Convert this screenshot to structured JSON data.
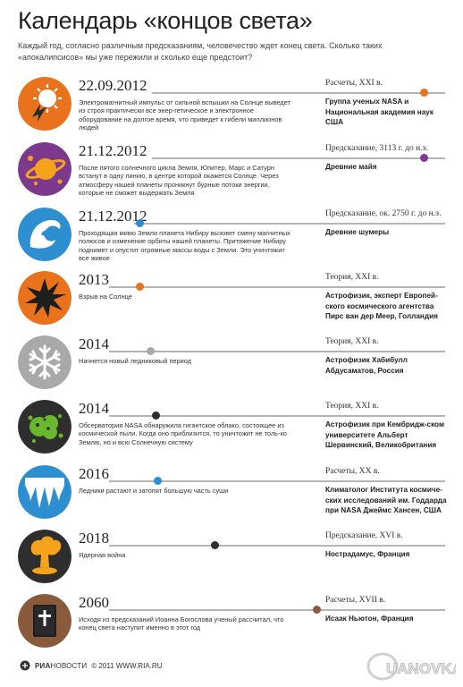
{
  "header": {
    "title": "Календарь «концов света»",
    "subtitle": "Каждый год, согласно различным предсказаниям, человечество ждет конец света. Сколько таких «апокалипсисов» мы уже пережили и сколько еще предстоит?"
  },
  "events": [
    {
      "date": "22.09.2012",
      "description": "Электромагнитный импульс от сильной вспышки на Солнце выведет из строя практически все энер-гетическое и электронное оборудование на долгое время, что приведет к гибели миллионов людей",
      "type": "Расчеты, XXI в.",
      "source": "Группа ученых NASA и Национальная академия наук США",
      "icon": "solar-flare-icon",
      "color": "#e8731c"
    },
    {
      "date": "21.12.2012",
      "description": "После пятого солнечного цикла Земля, Юпитер, Марс и Сатурн встанут в одну линию, в центре которой окажется Солнце. Через атмосферу нашей планеты проникнут бурные потоки энергии, которые не сможет выдержать Земля",
      "type": "Предсказание, 3113 г. до н.э.",
      "source": "Древние майя",
      "icon": "planet-alignment-icon",
      "color": "#7d3a8c"
    },
    {
      "date": "21.12.2012",
      "description": "Проходящая мимо Земли планета Нибиру вызовет смену магнитных полюсов и изменение орбиты нашей планеты. Притяжение Нибиру поднимет и опустит огромные массы воды с Земли. Это уничтожит все живое",
      "type": "Предсказание, ок. 2750 г. до н.э.",
      "source": "Древние шумеры",
      "icon": "tidal-wave-icon",
      "color": "#2e8fd0"
    },
    {
      "date": "2013",
      "description": "Взрыв на Солнце",
      "type": "Теория, XXI в.",
      "source": "Астрофизик, эксперт Европей-ского космического агентства Пирс ван дер Меер, Голландия",
      "icon": "sun-explosion-icon",
      "color": "#e8731c"
    },
    {
      "date": "2014",
      "description": "Начнется новый ледниковый период",
      "type": "Теория, XXI в.",
      "source": "Астрофизик Хабибулл Абдусаматов, Россия",
      "icon": "snowflake-icon",
      "color": "#a9a9a9"
    },
    {
      "date": "2014",
      "description": "Обсерватория NASA обнаружила гигантское облако, состоящее из космической пыли. Когда оно приблизится, то уничтожит не толь-ко Землю, но и всю Солнечную систему",
      "type": "Теория, XXI в.",
      "source": "Астрофизик при Кембридж-ском университете Альберт Шервинский, Великобритания",
      "icon": "space-dust-cloud-icon",
      "color": "#2e2e2e"
    },
    {
      "date": "2016",
      "description": "Ледники растают и затопят большую часть суши",
      "type": "Расчеты, XX в.",
      "source": "Климатолог Института космиче-ских исследований им. Годдарда при NASA Джеймс Хансен, США",
      "icon": "melting-glacier-icon",
      "color": "#2e8fd0"
    },
    {
      "date": "2018",
      "description": "Ядерная война",
      "type": "Предсказание, XVI в.",
      "source": "Нострадамус, Франция",
      "icon": "nuclear-explosion-icon",
      "color": "#2e2e2e"
    },
    {
      "date": "2060",
      "description": "Исходя из предсказаний Иоанна Богослова ученый рассчитал, что конец света наступит именно в этот год",
      "type": "Расчеты, XVII в.",
      "source": "Исаак Ньютон, Франция",
      "icon": "bible-icon",
      "color": "#8a5a3c"
    }
  ],
  "footer": {
    "logo_ria": "РИА",
    "logo_novosti": "НОВОСТИ",
    "credit": "© 2011 WWW.RIA.RU"
  },
  "watermark": "UANOVKA"
}
